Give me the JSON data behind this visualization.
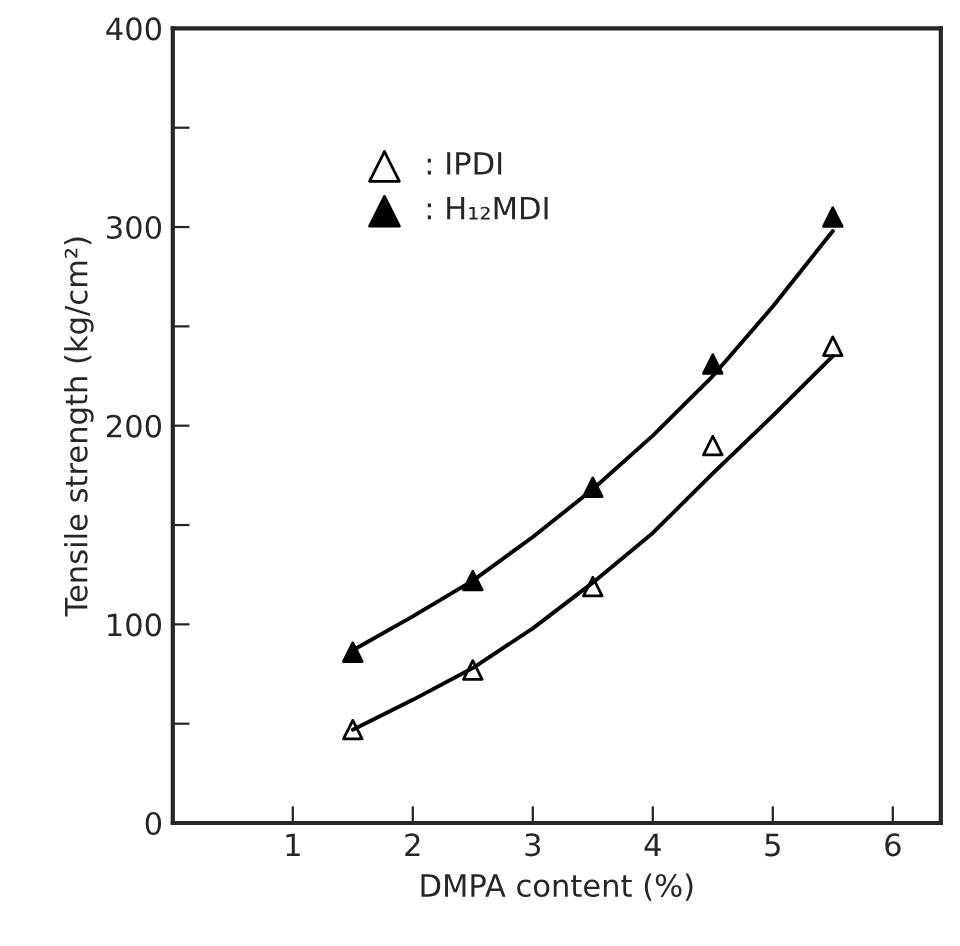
{
  "chart_data": {
    "type": "scatter",
    "xlabel": "DMPA content (%)",
    "ylabel": "Tensile strength (kg/cm²)",
    "x": [
      1.5,
      2.5,
      3.5,
      4.5,
      5.5
    ],
    "series": [
      {
        "name": ": IPDI",
        "color": "#000000",
        "marker": "triangle",
        "values": [
          47,
          77,
          119,
          190,
          240
        ]
      },
      {
        "name": ": H₁₂MDI",
        "color": "#000000",
        "marker": "triangle",
        "values": [
          86,
          122,
          169,
          231,
          305
        ]
      },
      {
        "type": "line",
        "color": "#000000",
        "marker": "none",
        "line_style": "solid",
        "x": [
          1.5,
          2,
          2.5,
          3,
          3.5,
          4,
          4.5,
          5,
          5.5
        ],
        "values": [
          47,
          62,
          78,
          98,
          121,
          146,
          176,
          205,
          235
        ]
      },
      {
        "type": "line",
        "color": "#000000",
        "marker": "none",
        "line_style": "solid",
        "x": [
          1.5,
          2,
          2.5,
          3,
          3.5,
          4,
          4.5,
          5,
          5.5
        ],
        "values": [
          87,
          104,
          122,
          144,
          168,
          195,
          225,
          260,
          298
        ]
      }
    ],
    "xlim": [
      0,
      6.4
    ],
    "xticks": [
      1,
      2,
      3,
      4,
      5,
      6
    ],
    "ylim": [
      0,
      400
    ],
    "yticks": [
      0,
      {
        "value": 50,
        "label": null
      },
      100,
      {
        "value": 150,
        "label": null
      },
      200,
      {
        "value": 250,
        "label": null
      },
      300,
      {
        "value": 350,
        "label": null
      },
      400
    ],
    "grid": false,
    "legend": "top left"
  }
}
